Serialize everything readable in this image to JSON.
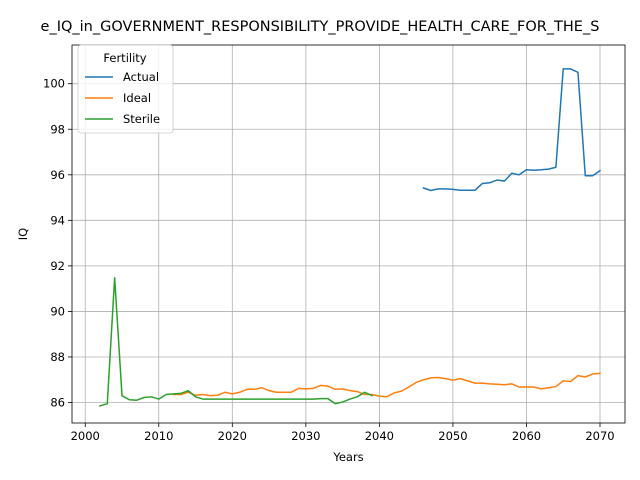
{
  "chart_data": {
    "type": "line",
    "title": "e_IQ_in_GOVERNMENT_RESPONSIBILITY_PROVIDE_HEALTH_CARE_FOR_THE_S",
    "xlabel": "Years",
    "ylabel": "IQ",
    "xlim": [
      1998.2,
      2073.4
    ],
    "ylim": [
      85.1,
      101.7
    ],
    "xticks": [
      2000,
      2010,
      2020,
      2030,
      2040,
      2050,
      2060,
      2070
    ],
    "yticks": [
      86,
      88,
      90,
      92,
      94,
      96,
      98,
      100
    ],
    "grid": true,
    "legend": {
      "title": "Fertility",
      "placement": "top-left"
    },
    "series": [
      {
        "name": "Actual",
        "color": "#1f77b4",
        "points": [
          [
            2046,
            95.42
          ],
          [
            2047,
            95.31
          ],
          [
            2048,
            95.38
          ],
          [
            2049,
            95.38
          ],
          [
            2050,
            95.36
          ],
          [
            2051,
            95.32
          ],
          [
            2052,
            95.32
          ],
          [
            2053,
            95.32
          ],
          [
            2054,
            95.62
          ],
          [
            2055,
            95.65
          ],
          [
            2056,
            95.77
          ],
          [
            2057,
            95.72
          ],
          [
            2058,
            96.07
          ],
          [
            2059,
            96.0
          ],
          [
            2060,
            96.22
          ],
          [
            2061,
            96.2
          ],
          [
            2062,
            96.22
          ],
          [
            2063,
            96.25
          ],
          [
            2064,
            96.33
          ],
          [
            2065,
            100.65
          ],
          [
            2066,
            100.65
          ],
          [
            2067,
            100.5
          ],
          [
            2068,
            95.96
          ],
          [
            2069,
            95.96
          ],
          [
            2070,
            96.18
          ]
        ]
      },
      {
        "name": "Ideal",
        "color": "#ff7f0e",
        "points": [
          [
            2012,
            86.35
          ],
          [
            2013,
            86.35
          ],
          [
            2014,
            86.45
          ],
          [
            2015,
            86.32
          ],
          [
            2016,
            86.35
          ],
          [
            2017,
            86.3
          ],
          [
            2018,
            86.32
          ],
          [
            2019,
            86.45
          ],
          [
            2020,
            86.38
          ],
          [
            2021,
            86.45
          ],
          [
            2022,
            86.58
          ],
          [
            2023,
            86.58
          ],
          [
            2024,
            86.65
          ],
          [
            2025,
            86.52
          ],
          [
            2026,
            86.45
          ],
          [
            2027,
            86.45
          ],
          [
            2028,
            86.45
          ],
          [
            2029,
            86.62
          ],
          [
            2030,
            86.6
          ],
          [
            2031,
            86.62
          ],
          [
            2032,
            86.75
          ],
          [
            2033,
            86.72
          ],
          [
            2034,
            86.58
          ],
          [
            2035,
            86.6
          ],
          [
            2036,
            86.52
          ],
          [
            2037,
            86.48
          ],
          [
            2038,
            86.35
          ],
          [
            2039,
            86.35
          ],
          [
            2040,
            86.28
          ],
          [
            2041,
            86.25
          ],
          [
            2042,
            86.42
          ],
          [
            2043,
            86.5
          ],
          [
            2044,
            86.68
          ],
          [
            2045,
            86.88
          ],
          [
            2046,
            87.0
          ],
          [
            2047,
            87.08
          ],
          [
            2048,
            87.1
          ],
          [
            2049,
            87.05
          ],
          [
            2050,
            86.98
          ],
          [
            2051,
            87.05
          ],
          [
            2052,
            86.95
          ],
          [
            2053,
            86.85
          ],
          [
            2054,
            86.85
          ],
          [
            2055,
            86.82
          ],
          [
            2056,
            86.8
          ],
          [
            2057,
            86.78
          ],
          [
            2058,
            86.82
          ],
          [
            2059,
            86.68
          ],
          [
            2060,
            86.68
          ],
          [
            2061,
            86.68
          ],
          [
            2062,
            86.6
          ],
          [
            2063,
            86.65
          ],
          [
            2064,
            86.7
          ],
          [
            2065,
            86.95
          ],
          [
            2066,
            86.92
          ],
          [
            2067,
            87.18
          ],
          [
            2068,
            87.12
          ],
          [
            2069,
            87.25
          ],
          [
            2070,
            87.28
          ]
        ]
      },
      {
        "name": "Sterile",
        "color": "#2ca02c",
        "points": [
          [
            2002,
            85.85
          ],
          [
            2003,
            85.95
          ],
          [
            2004,
            91.48
          ],
          [
            2005,
            86.3
          ],
          [
            2006,
            86.12
          ],
          [
            2007,
            86.1
          ],
          [
            2008,
            86.22
          ],
          [
            2009,
            86.25
          ],
          [
            2010,
            86.15
          ],
          [
            2011,
            86.35
          ],
          [
            2012,
            86.38
          ],
          [
            2013,
            86.4
          ],
          [
            2014,
            86.52
          ],
          [
            2015,
            86.25
          ],
          [
            2016,
            86.15
          ],
          [
            2017,
            86.15
          ],
          [
            2018,
            86.15
          ],
          [
            2019,
            86.15
          ],
          [
            2020,
            86.15
          ],
          [
            2021,
            86.15
          ],
          [
            2022,
            86.15
          ],
          [
            2023,
            86.15
          ],
          [
            2024,
            86.15
          ],
          [
            2025,
            86.15
          ],
          [
            2026,
            86.15
          ],
          [
            2027,
            86.15
          ],
          [
            2028,
            86.15
          ],
          [
            2029,
            86.15
          ],
          [
            2030,
            86.15
          ],
          [
            2031,
            86.15
          ],
          [
            2032,
            86.17
          ],
          [
            2033,
            86.17
          ],
          [
            2034,
            85.95
          ],
          [
            2035,
            86.02
          ],
          [
            2036,
            86.15
          ],
          [
            2037,
            86.25
          ],
          [
            2038,
            86.45
          ],
          [
            2039,
            86.3
          ]
        ]
      }
    ]
  }
}
